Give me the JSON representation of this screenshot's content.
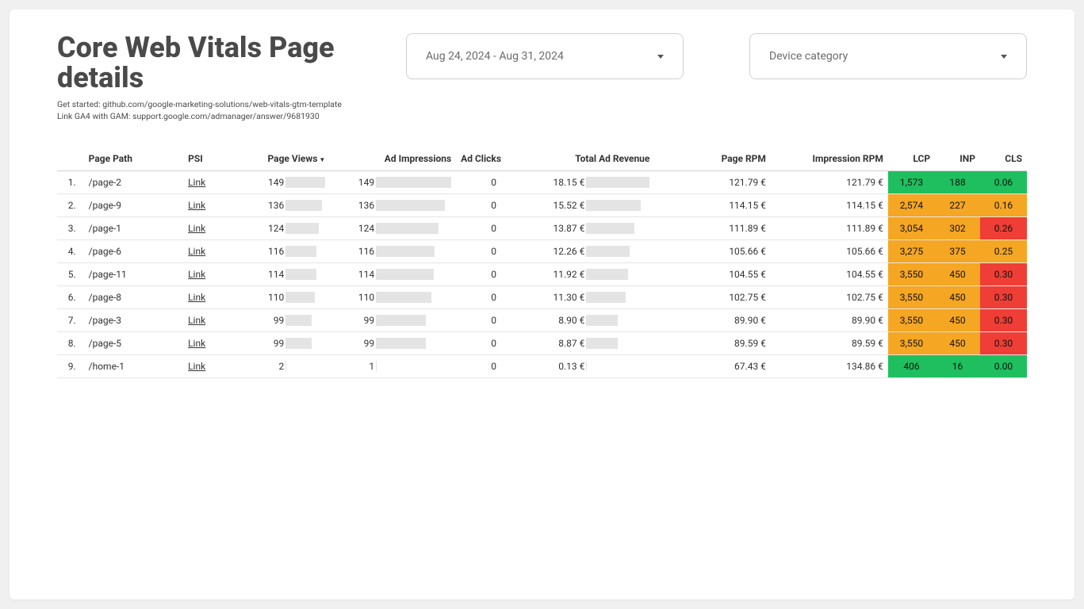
{
  "header": {
    "title": "Core Web Vitals Page details",
    "sub1": "Get started: github.com/google-marketing-solutions/web-vitals-gtm-template",
    "sub2": "Link GA4 with GAM: support.google.com/admanager/answer/9681930"
  },
  "controls": {
    "date_range": "Aug 24, 2024 - Aug 31, 2024",
    "device_category": "Device category"
  },
  "table": {
    "columns": [
      "",
      "Page Path",
      "PSI",
      "Page Views",
      "Ad Impressions",
      "Ad Clicks",
      "Total Ad Revenue",
      "Page RPM",
      "Impression RPM",
      "LCP",
      "INP",
      "CLS"
    ],
    "sort_col_index": 3,
    "psi_link_label": "Link",
    "bar_color": "#e4e4e4",
    "max_page_views": 149,
    "max_ad_impressions": 149,
    "max_revenue": 18.15,
    "colors": {
      "good": "#1fbf5f",
      "warn": "#f5a623",
      "bad": "#ef3e36"
    },
    "bar_tracks": {
      "pv": 50,
      "ai": 95,
      "rev": 80
    },
    "rows": [
      {
        "idx": "1.",
        "path": "/page-2",
        "pv": "149",
        "pv_pct": 100,
        "ai": "149",
        "ai_pct": 100,
        "ac": "0",
        "rev": "18.15 €",
        "rev_pct": 100,
        "rpm": "121.79 €",
        "irpm": "121.79 €",
        "lcp": "1,573",
        "lcp_c": "good",
        "inp": "188",
        "inp_c": "good",
        "cls": "0.06",
        "cls_c": "good"
      },
      {
        "idx": "2.",
        "path": "/page-9",
        "pv": "136",
        "pv_pct": 91,
        "ai": "136",
        "ai_pct": 91,
        "ac": "0",
        "rev": "15.52 €",
        "rev_pct": 86,
        "rpm": "114.15 €",
        "irpm": "114.15 €",
        "lcp": "2,574",
        "lcp_c": "warn",
        "inp": "227",
        "inp_c": "warn",
        "cls": "0.16",
        "cls_c": "warn"
      },
      {
        "idx": "3.",
        "path": "/page-1",
        "pv": "124",
        "pv_pct": 83,
        "ai": "124",
        "ai_pct": 83,
        "ac": "0",
        "rev": "13.87 €",
        "rev_pct": 76,
        "rpm": "111.89 €",
        "irpm": "111.89 €",
        "lcp": "3,054",
        "lcp_c": "warn",
        "inp": "302",
        "inp_c": "warn",
        "cls": "0.26",
        "cls_c": "bad"
      },
      {
        "idx": "4.",
        "path": "/page-6",
        "pv": "116",
        "pv_pct": 78,
        "ai": "116",
        "ai_pct": 78,
        "ac": "0",
        "rev": "12.26 €",
        "rev_pct": 68,
        "rpm": "105.66 €",
        "irpm": "105.66 €",
        "lcp": "3,275",
        "lcp_c": "warn",
        "inp": "375",
        "inp_c": "warn",
        "cls": "0.25",
        "cls_c": "warn"
      },
      {
        "idx": "5.",
        "path": "/page-11",
        "pv": "114",
        "pv_pct": 77,
        "ai": "114",
        "ai_pct": 77,
        "ac": "0",
        "rev": "11.92 €",
        "rev_pct": 66,
        "rpm": "104.55 €",
        "irpm": "104.55 €",
        "lcp": "3,550",
        "lcp_c": "warn",
        "inp": "450",
        "inp_c": "warn",
        "cls": "0.30",
        "cls_c": "bad"
      },
      {
        "idx": "6.",
        "path": "/page-8",
        "pv": "110",
        "pv_pct": 74,
        "ai": "110",
        "ai_pct": 74,
        "ac": "0",
        "rev": "11.30 €",
        "rev_pct": 62,
        "rpm": "102.75 €",
        "irpm": "102.75 €",
        "lcp": "3,550",
        "lcp_c": "warn",
        "inp": "450",
        "inp_c": "warn",
        "cls": "0.30",
        "cls_c": "bad"
      },
      {
        "idx": "7.",
        "path": "/page-3",
        "pv": "99",
        "pv_pct": 66,
        "ai": "99",
        "ai_pct": 66,
        "ac": "0",
        "rev": "8.90 €",
        "rev_pct": 49,
        "rpm": "89.90 €",
        "irpm": "89.90 €",
        "lcp": "3,550",
        "lcp_c": "warn",
        "inp": "450",
        "inp_c": "warn",
        "cls": "0.30",
        "cls_c": "bad"
      },
      {
        "idx": "8.",
        "path": "/page-5",
        "pv": "99",
        "pv_pct": 66,
        "ai": "99",
        "ai_pct": 66,
        "ac": "0",
        "rev": "8.87 €",
        "rev_pct": 49,
        "rpm": "89.59 €",
        "irpm": "89.59 €",
        "lcp": "3,550",
        "lcp_c": "warn",
        "inp": "450",
        "inp_c": "warn",
        "cls": "0.30",
        "cls_c": "bad"
      },
      {
        "idx": "9.",
        "path": "/home-1",
        "pv": "2",
        "pv_pct": 1,
        "ai": "1",
        "ai_pct": 1,
        "ac": "0",
        "rev": "0.13 €",
        "rev_pct": 1,
        "rpm": "67.43 €",
        "irpm": "134.86 €",
        "lcp": "406",
        "lcp_c": "good",
        "inp": "16",
        "inp_c": "good",
        "cls": "0.00",
        "cls_c": "good"
      }
    ]
  }
}
